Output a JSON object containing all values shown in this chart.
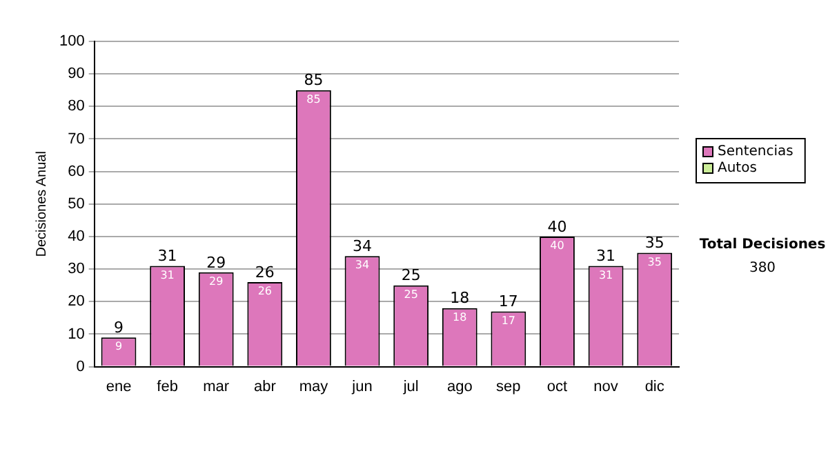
{
  "chart_data": {
    "type": "bar",
    "ylabel": "Decisiones Anual",
    "categories": [
      "ene",
      "feb",
      "mar",
      "abr",
      "may",
      "jun",
      "jul",
      "ago",
      "sep",
      "oct",
      "nov",
      "dic"
    ],
    "series": [
      {
        "name": "Sentencias",
        "color": "#dd77bb",
        "values": [
          9,
          31,
          29,
          26,
          85,
          34,
          25,
          18,
          17,
          40,
          31,
          35
        ],
        "value_labels": [
          "9",
          "31",
          "29",
          "26",
          "85",
          "34",
          "25",
          "18",
          "17",
          "40",
          "31",
          "35"
        ]
      },
      {
        "name": "Autos",
        "color": "#ccee99",
        "values": [
          0,
          0,
          0,
          0,
          0,
          0,
          0,
          0,
          0,
          0,
          0,
          0
        ]
      }
    ],
    "stacked": true,
    "totals": [
      "9",
      "31",
      "29",
      "26",
      "85",
      "34",
      "25",
      "18",
      "17",
      "40",
      "31",
      "35"
    ],
    "ylim": [
      0,
      100
    ],
    "yticks": [
      0,
      10,
      20,
      30,
      40,
      50,
      60,
      70,
      80,
      90,
      100
    ],
    "grid": "y",
    "legend": "right",
    "annotations": [
      "Total Decisiones",
      "380"
    ]
  }
}
